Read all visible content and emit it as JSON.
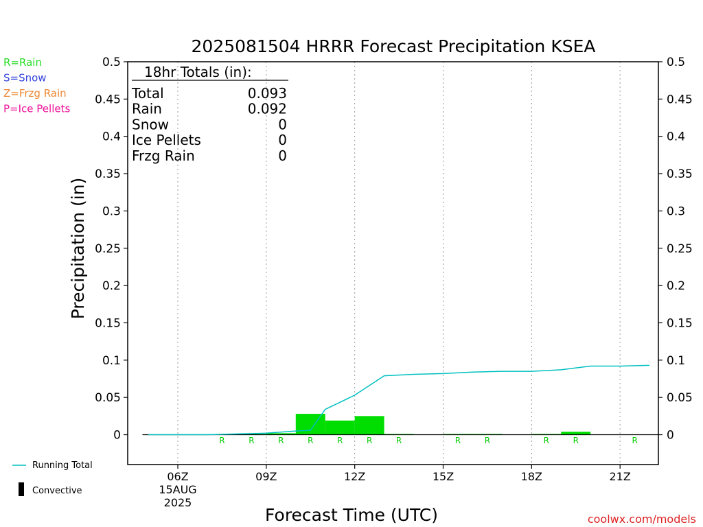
{
  "chart_data": {
    "type": "bar",
    "title": "2025081504 HRRR Forecast Precipitation KSEA",
    "xlabel": "Forecast Time (UTC)",
    "ylabel": "Precipitation (in)",
    "ylim": [
      -0.04,
      0.5
    ],
    "xlim": [
      4.3,
      22.3
    ],
    "y_ticks": [
      0,
      0.05,
      0.1,
      0.15,
      0.2,
      0.25,
      0.3,
      0.35,
      0.4,
      0.45,
      0.5
    ],
    "y_tick_labels": [
      "0",
      "0.05",
      "0.1",
      "0.15",
      "0.2",
      "0.25",
      "0.3",
      "0.35",
      "0.4",
      "0.45",
      "0.5"
    ],
    "x_ticks": [
      {
        "hour": 6,
        "lines": [
          "06Z",
          "15AUG",
          "2025"
        ]
      },
      {
        "hour": 9,
        "lines": [
          "09Z"
        ]
      },
      {
        "hour": 12,
        "lines": [
          "12Z"
        ]
      },
      {
        "hour": 15,
        "lines": [
          "15Z"
        ]
      },
      {
        "hour": 18,
        "lines": [
          "18Z"
        ]
      },
      {
        "hour": 21,
        "lines": [
          "21Z"
        ]
      }
    ],
    "grid": "vertical dotted at tick hours",
    "hours": [
      5,
      6,
      7,
      8,
      9,
      10,
      11,
      12,
      13,
      14,
      15,
      16,
      17,
      18,
      19,
      20,
      21,
      22
    ],
    "series": [
      {
        "name": "Rain",
        "kind": "bar",
        "color": "#00dd00",
        "values": [
          0,
          0,
          0,
          0.0005,
          0.001,
          0.002,
          0.028,
          0.019,
          0.025,
          0.001,
          0,
          0.001,
          0.001,
          0,
          0.001,
          0.004,
          0,
          0
        ]
      },
      {
        "name": "Convective",
        "kind": "bar",
        "color": "#000000",
        "values": [
          0,
          0,
          0,
          0,
          0,
          0,
          0,
          0,
          0,
          0,
          0,
          0,
          0,
          0,
          0,
          0,
          0,
          0
        ]
      },
      {
        "name": "Running Total",
        "kind": "line",
        "color": "#00c0c0",
        "x": [
          5,
          6,
          7,
          8,
          9,
          10,
          10.5,
          11,
          12,
          13,
          14,
          15,
          16,
          17,
          18,
          19,
          20,
          21,
          22
        ],
        "values": [
          0,
          0,
          0,
          0.001,
          0.002,
          0.005,
          0.006,
          0.034,
          0.053,
          0.079,
          0.081,
          0.082,
          0.084,
          0.085,
          0.085,
          0.087,
          0.092,
          0.092,
          0.093
        ]
      }
    ],
    "ptype_markers": {
      "hours": [
        8,
        9,
        10,
        11,
        12,
        13,
        14,
        16,
        17,
        19,
        20,
        22
      ],
      "letter": "R",
      "color": "#00cc00"
    },
    "totals_box": {
      "header": "18hr Totals (in):",
      "rows": [
        {
          "label": "Total",
          "value": "0.093"
        },
        {
          "label": "Rain",
          "value": "0.092"
        },
        {
          "label": "Snow",
          "value": "0"
        },
        {
          "label": "Ice Pellets",
          "value": "0"
        },
        {
          "label": "Frzg Rain",
          "value": "0"
        }
      ]
    },
    "ptype_key": [
      {
        "text": "R=Rain",
        "color": "#22dd22"
      },
      {
        "text": "S=Snow",
        "color": "#3344dd"
      },
      {
        "text": "Z=Frzg Rain",
        "color": "#ee8833"
      },
      {
        "text": "P=Ice Pellets",
        "color": "#ee1199"
      }
    ],
    "legend": [
      {
        "text": "Running Total",
        "color": "#00c0c0",
        "symbol": "line"
      },
      {
        "text": "Convective",
        "color": "#000000",
        "symbol": "bar"
      }
    ],
    "credit": "coolwx.com/models"
  }
}
